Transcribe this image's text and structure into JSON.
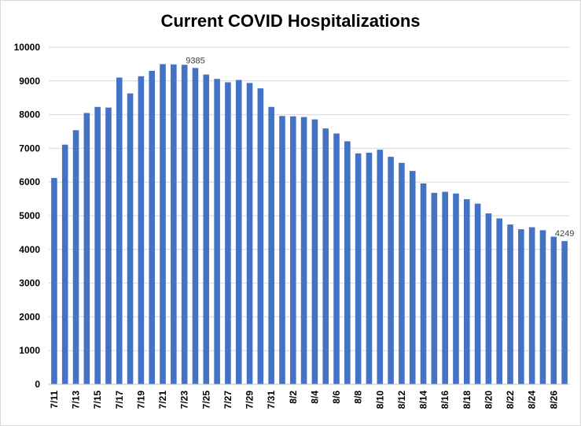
{
  "chart_data": {
    "type": "bar",
    "title": "Current COVID Hospitalizations",
    "xlabel": "",
    "ylabel": "",
    "ylim": [
      0,
      10000
    ],
    "yticks": [
      0,
      1000,
      2000,
      3000,
      4000,
      5000,
      6000,
      7000,
      8000,
      9000,
      10000
    ],
    "grid": true,
    "bar_color": "#4472c4",
    "grid_color": "#d9d9d9",
    "categories": [
      "7/11",
      "7/12",
      "7/13",
      "7/14",
      "7/15",
      "7/16",
      "7/17",
      "7/18",
      "7/19",
      "7/20",
      "7/21",
      "7/22",
      "7/23",
      "7/24",
      "7/25",
      "7/26",
      "7/27",
      "7/28",
      "7/29",
      "7/30",
      "7/31",
      "8/1",
      "8/2",
      "8/3",
      "8/4",
      "8/5",
      "8/6",
      "8/7",
      "8/8",
      "8/9",
      "8/10",
      "8/11",
      "8/12",
      "8/13",
      "8/14",
      "8/15",
      "8/16",
      "8/17",
      "8/18",
      "8/19",
      "8/20",
      "8/21",
      "8/22",
      "8/23",
      "8/24",
      "8/25",
      "8/26",
      "8/27"
    ],
    "tick_labels_shown": [
      "7/11",
      "7/13",
      "7/15",
      "7/17",
      "7/19",
      "7/21",
      "7/23",
      "7/25",
      "7/27",
      "7/29",
      "7/31",
      "8/2",
      "8/4",
      "8/6",
      "8/8",
      "8/10",
      "8/12",
      "8/14",
      "8/16",
      "8/18",
      "8/20",
      "8/22",
      "8/24",
      "8/26"
    ],
    "values": [
      6120,
      7110,
      7540,
      8050,
      8230,
      8210,
      9100,
      8630,
      9140,
      9300,
      9500,
      9490,
      9480,
      9385,
      9190,
      9060,
      8960,
      9030,
      8940,
      8780,
      8230,
      7960,
      7950,
      7930,
      7860,
      7590,
      7440,
      7210,
      6850,
      6870,
      6960,
      6750,
      6570,
      6330,
      5960,
      5680,
      5710,
      5660,
      5490,
      5360,
      5070,
      4920,
      4740,
      4600,
      4660,
      4570,
      4380,
      4249
    ],
    "data_labels": [
      {
        "index": 13,
        "text": "9385"
      },
      {
        "index": 47,
        "text": "4249"
      }
    ]
  }
}
